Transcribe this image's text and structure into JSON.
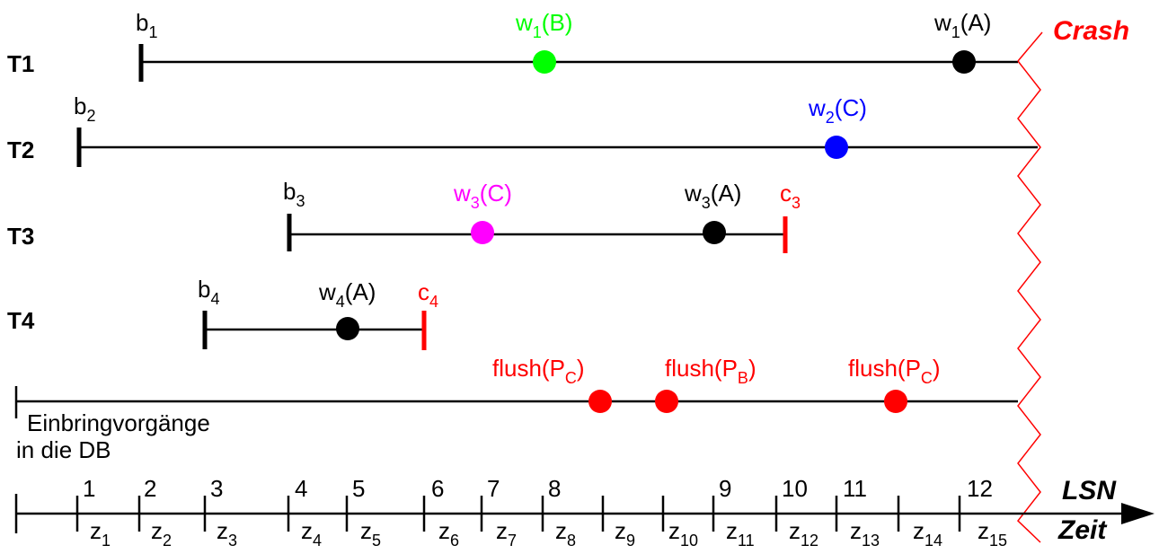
{
  "crash_label": "Crash",
  "colors": {
    "line": "#000000",
    "red": "#ff0000",
    "green": "#00ff00",
    "blue": "#0000ff",
    "magenta": "#ff00ff"
  },
  "transactions": [
    {
      "name": "T1",
      "begin": {
        "base": "b",
        "sub": "1"
      },
      "writes": [
        {
          "base": "w",
          "sub": "1",
          "item": "(B)",
          "color": "green"
        },
        {
          "base": "w",
          "sub": "1",
          "item": "(A)",
          "color": "black"
        }
      ],
      "commit": null
    },
    {
      "name": "T2",
      "begin": {
        "base": "b",
        "sub": "2"
      },
      "writes": [
        {
          "base": "w",
          "sub": "2",
          "item": "(C)",
          "color": "blue"
        }
      ],
      "commit": null
    },
    {
      "name": "T3",
      "begin": {
        "base": "b",
        "sub": "3"
      },
      "writes": [
        {
          "base": "w",
          "sub": "3",
          "item": "(C)",
          "color": "magenta"
        },
        {
          "base": "w",
          "sub": "3",
          "item": "(A)",
          "color": "black"
        }
      ],
      "commit": {
        "base": "c",
        "sub": "3"
      }
    },
    {
      "name": "T4",
      "begin": {
        "base": "b",
        "sub": "4"
      },
      "writes": [
        {
          "base": "w",
          "sub": "4",
          "item": "(A)",
          "color": "black"
        }
      ],
      "commit": {
        "base": "c",
        "sub": "4"
      }
    }
  ],
  "db_line": {
    "label_line1": "Einbringvorgänge",
    "label_line2": "in die DB",
    "flushes": [
      {
        "base": "flush(P",
        "sub": "C",
        "close": ")"
      },
      {
        "base": "flush(P",
        "sub": "B",
        "close": ")"
      },
      {
        "base": "flush(P",
        "sub": "C",
        "close": ")"
      }
    ]
  },
  "axis": {
    "label_top": "LSN",
    "label_bottom": "Zeit",
    "lsn": [
      "1",
      "2",
      "3",
      "4",
      "5",
      "6",
      "7",
      "8",
      "9",
      "10",
      "11",
      "12"
    ],
    "intervals": [
      "1",
      "2",
      "3",
      "4",
      "5",
      "6",
      "7",
      "8",
      "9",
      "10",
      "11",
      "12",
      "13",
      "14",
      "15"
    ],
    "interval_prefix": "z"
  }
}
